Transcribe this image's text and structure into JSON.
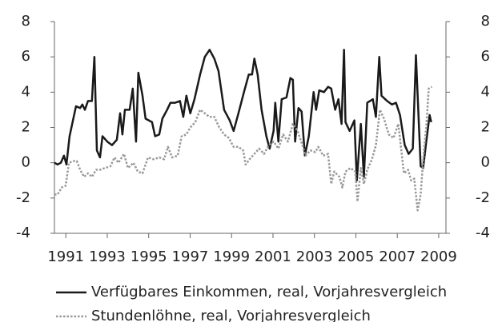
{
  "chart_data": {
    "type": "line",
    "xlim": [
      1990.45,
      2009.35
    ],
    "xticks": [
      1991,
      1993,
      1995,
      1997,
      1999,
      2001,
      2003,
      2005,
      2007,
      2009
    ],
    "ylim": [
      -4,
      8
    ],
    "yticks": [
      -4,
      -2,
      0,
      2,
      4,
      6,
      8
    ],
    "y2lim": [
      -4,
      8
    ],
    "y2ticks": [
      -4,
      -2,
      0,
      2,
      4,
      6,
      8
    ],
    "series": [
      {
        "name": "Verfügbares Einkommen, real, Vorjahresvergleich",
        "color": "#1a1a1a",
        "linestyle": "solid",
        "x": [
          1990.45,
          1990.6,
          1990.76,
          1990.91,
          1991.03,
          1991.18,
          1991.49,
          1991.69,
          1991.8,
          1991.92,
          1992.07,
          1992.26,
          1992.38,
          1992.5,
          1992.65,
          1992.77,
          1993.0,
          1993.23,
          1993.46,
          1993.62,
          1993.73,
          1993.85,
          1994.08,
          1994.23,
          1994.39,
          1994.5,
          1994.7,
          1994.85,
          1995.16,
          1995.31,
          1995.51,
          1995.66,
          1995.89,
          1996.05,
          1996.28,
          1996.51,
          1996.67,
          1996.82,
          1997.01,
          1997.21,
          1997.48,
          1997.71,
          1997.94,
          1998.17,
          1998.37,
          1998.64,
          1998.91,
          1999.1,
          1999.33,
          1999.6,
          1999.83,
          1999.99,
          2000.1,
          2000.26,
          2000.45,
          2000.68,
          2000.84,
          2001.03,
          2001.11,
          2001.26,
          2001.42,
          2001.65,
          2001.84,
          2001.96,
          2002.07,
          2002.23,
          2002.38,
          2002.54,
          2002.73,
          2002.96,
          2003.08,
          2003.23,
          2003.46,
          2003.66,
          2003.81,
          2004.0,
          2004.16,
          2004.31,
          2004.43,
          2004.5,
          2004.7,
          2004.93,
          2005.05,
          2005.24,
          2005.39,
          2005.55,
          2005.82,
          2005.97,
          2006.13,
          2006.24,
          2006.51,
          2006.74,
          2006.94,
          2007.13,
          2007.36,
          2007.55,
          2007.75,
          2007.9,
          2008.13,
          2008.25,
          2008.4,
          2008.56,
          2008.64
        ],
        "values": [
          0,
          -0.1,
          0,
          0.4,
          -0.1,
          1.5,
          3.2,
          3.1,
          3.3,
          3.0,
          3.5,
          3.5,
          6.0,
          0.7,
          0.3,
          1.5,
          1.2,
          1.0,
          1.3,
          2.8,
          1.6,
          3.0,
          3.0,
          4.2,
          1.2,
          5.1,
          3.8,
          2.5,
          2.3,
          1.5,
          1.6,
          2.5,
          3.0,
          3.4,
          3.4,
          3.5,
          2.6,
          3.8,
          2.8,
          3.6,
          5.0,
          6.0,
          6.4,
          5.9,
          5.2,
          3.0,
          2.4,
          1.8,
          2.8,
          4.0,
          5.0,
          5.0,
          5.9,
          5.0,
          3.0,
          1.5,
          0.8,
          1.8,
          3.4,
          1.2,
          3.6,
          3.7,
          4.8,
          4.7,
          1.2,
          3.1,
          2.9,
          0.4,
          1.5,
          4.0,
          3.0,
          4.1,
          4.0,
          4.3,
          4.2,
          3.0,
          3.6,
          2.2,
          6.4,
          2.3,
          1.8,
          2.4,
          -1.0,
          2.2,
          -0.8,
          3.4,
          3.6,
          2.6,
          6.0,
          3.8,
          3.5,
          3.3,
          3.4,
          2.7,
          1.0,
          0.5,
          0.8,
          6.1,
          -0.2,
          -0.3,
          1.2,
          2.7,
          2.3
        ]
      },
      {
        "name": "Stundenlöhne, real, Vorjahresvergleich",
        "color": "#999999",
        "linestyle": "dotted",
        "x": [
          1990.45,
          1990.6,
          1990.8,
          1990.99,
          1991.15,
          1991.38,
          1991.53,
          1991.69,
          1991.88,
          1992.07,
          1992.26,
          1992.46,
          1992.65,
          1992.88,
          1993.15,
          1993.35,
          1993.54,
          1993.81,
          1994.0,
          1994.27,
          1994.47,
          1994.7,
          1994.97,
          1995.24,
          1995.51,
          1995.74,
          1995.93,
          1996.13,
          1996.4,
          1996.59,
          1996.82,
          1997.01,
          1997.25,
          1997.48,
          1997.71,
          1997.94,
          1998.17,
          1998.41,
          1998.64,
          1998.87,
          1999.1,
          1999.33,
          1999.56,
          1999.68,
          1999.87,
          2000.1,
          2000.33,
          2000.57,
          2000.8,
          2001.03,
          2001.26,
          2001.49,
          2001.72,
          2001.96,
          2002.19,
          2002.42,
          2002.57,
          2002.81,
          2003.04,
          2003.19,
          2003.42,
          2003.66,
          2003.81,
          2003.96,
          2004.2,
          2004.35,
          2004.5,
          2004.74,
          2004.97,
          2005.08,
          2005.24,
          2005.39,
          2005.55,
          2005.78,
          2005.97,
          2006.16,
          2006.36,
          2006.59,
          2006.82,
          2007.05,
          2007.32,
          2007.52,
          2007.67,
          2007.82,
          2007.98,
          2008.13,
          2008.29,
          2008.4,
          2008.52,
          2008.67
        ],
        "values": [
          -1.8,
          -1.8,
          -1.4,
          -1.3,
          0,
          0.1,
          0.1,
          -0.4,
          -0.8,
          -0.6,
          -0.8,
          -0.4,
          -0.4,
          -0.3,
          -0.2,
          0.3,
          0,
          0.5,
          -0.3,
          0,
          -0.5,
          -0.6,
          0.3,
          0.2,
          0.3,
          0.2,
          0.9,
          0.3,
          0.4,
          1.5,
          1.6,
          2.0,
          2.3,
          3.0,
          2.8,
          2.6,
          2.6,
          2.0,
          1.6,
          1.4,
          0.9,
          0.9,
          0.7,
          -0.1,
          0.2,
          0.5,
          0.8,
          0.5,
          1.0,
          1.2,
          0.8,
          1.6,
          1.2,
          2.2,
          1.8,
          1.0,
          0.4,
          0.7,
          0.6,
          0.9,
          0.4,
          0.5,
          -1.2,
          -0.5,
          -0.8,
          -1.4,
          -0.5,
          -0.3,
          -0.5,
          -2.2,
          -0.3,
          -1.2,
          -0.4,
          0.2,
          1.0,
          3.0,
          2.5,
          1.6,
          1.4,
          2.2,
          -0.6,
          -0.4,
          -1.0,
          -0.9,
          -2.7,
          -1.8,
          0.8,
          2.0,
          4.2,
          4.3
        ]
      }
    ]
  }
}
